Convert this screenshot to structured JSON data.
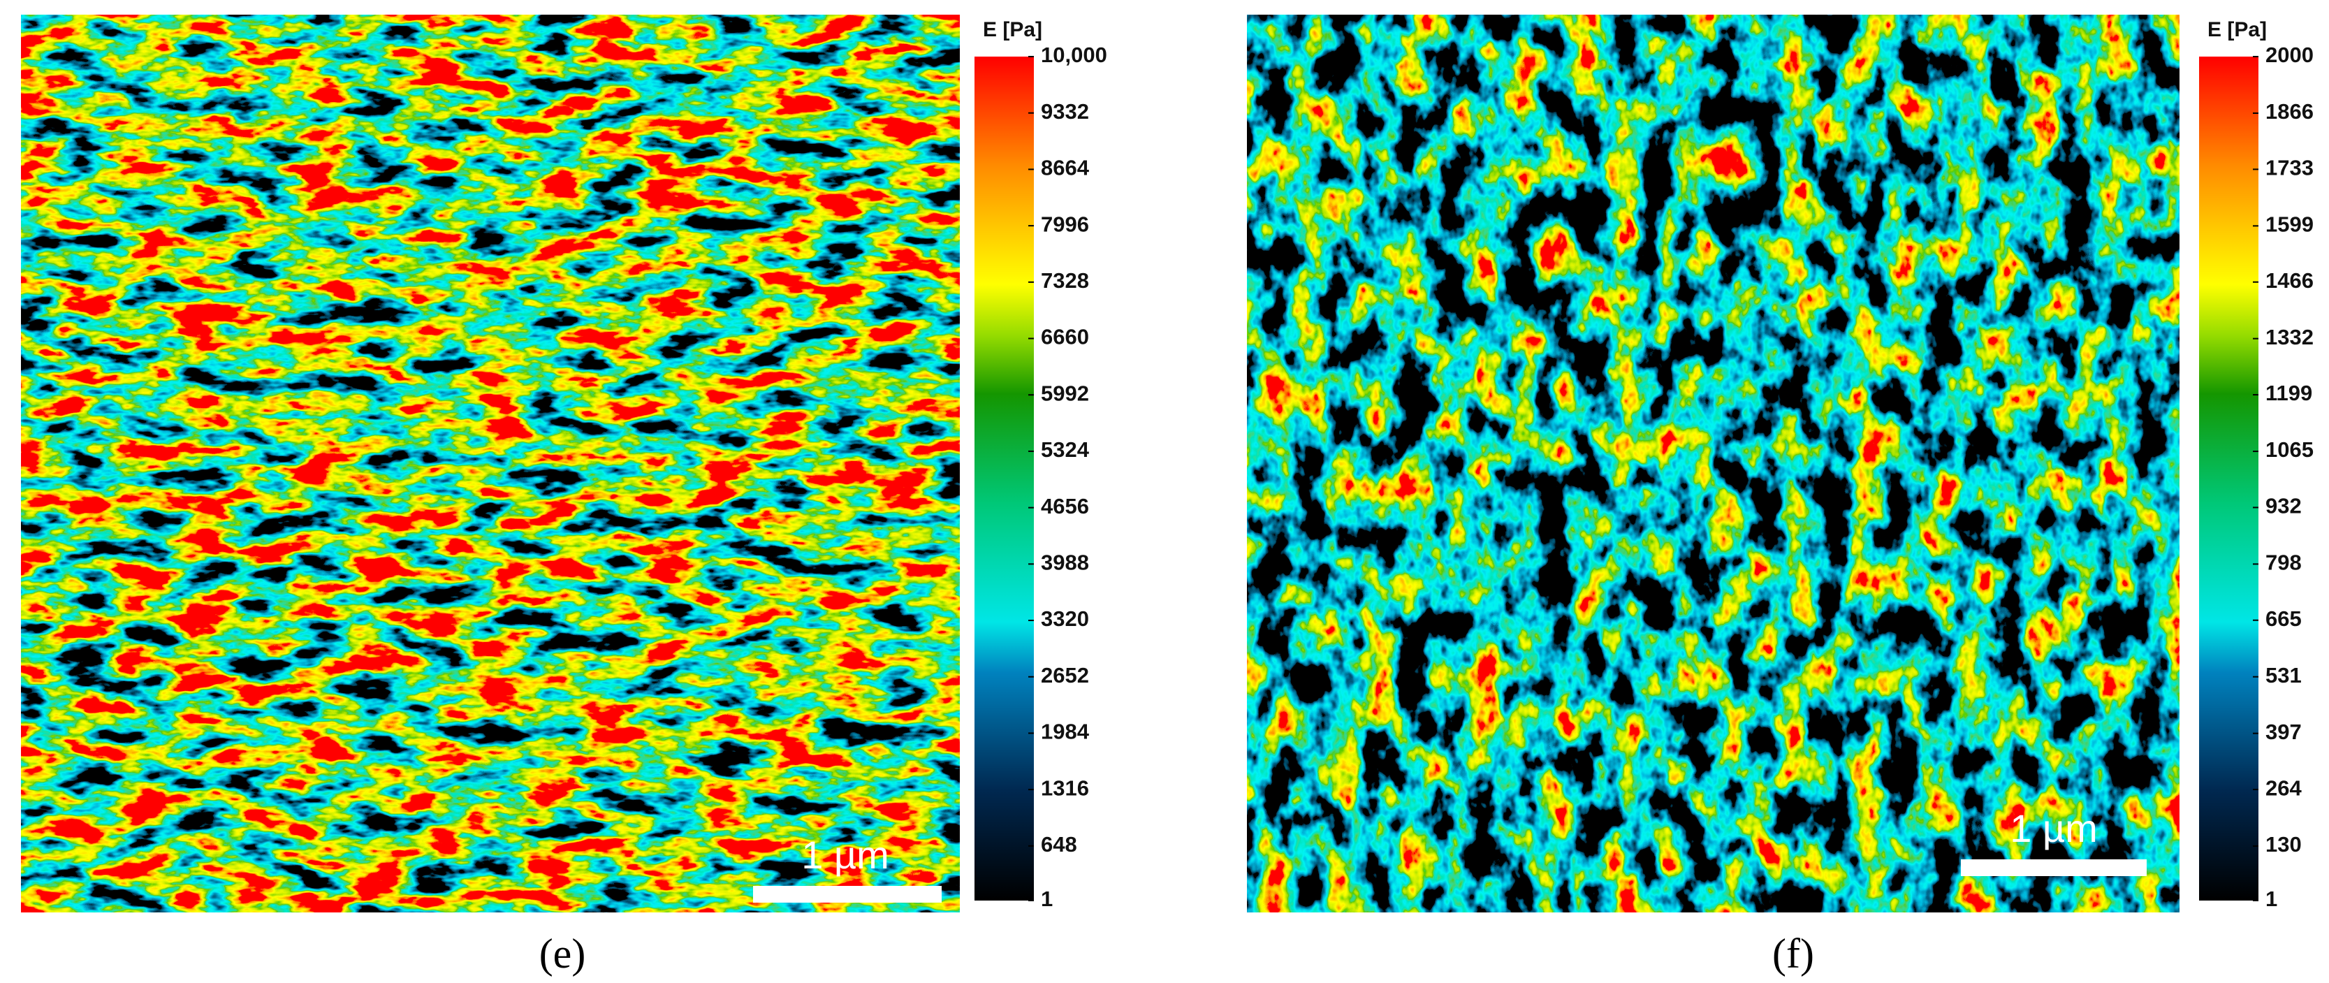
{
  "panels": [
    {
      "label": "(e)",
      "scale_bar": "1 µm",
      "colorbar": {
        "title": "E [Pa]",
        "lim": [
          1,
          10000
        ],
        "ticks": [
          1,
          648,
          1316,
          1984,
          2652,
          3320,
          3988,
          4656,
          5324,
          5992,
          6660,
          7328,
          7996,
          8664,
          9332,
          {
            "value": 10000,
            "label": "10,000"
          }
        ]
      }
    },
    {
      "label": "(f)",
      "scale_bar": "1 µm",
      "colorbar": {
        "title": "E [Pa]",
        "lim": [
          1,
          2000
        ],
        "ticks": [
          1,
          130,
          264,
          397,
          531,
          665,
          798,
          932,
          1065,
          1199,
          1332,
          1466,
          1599,
          1733,
          1866,
          2000
        ]
      }
    }
  ]
}
